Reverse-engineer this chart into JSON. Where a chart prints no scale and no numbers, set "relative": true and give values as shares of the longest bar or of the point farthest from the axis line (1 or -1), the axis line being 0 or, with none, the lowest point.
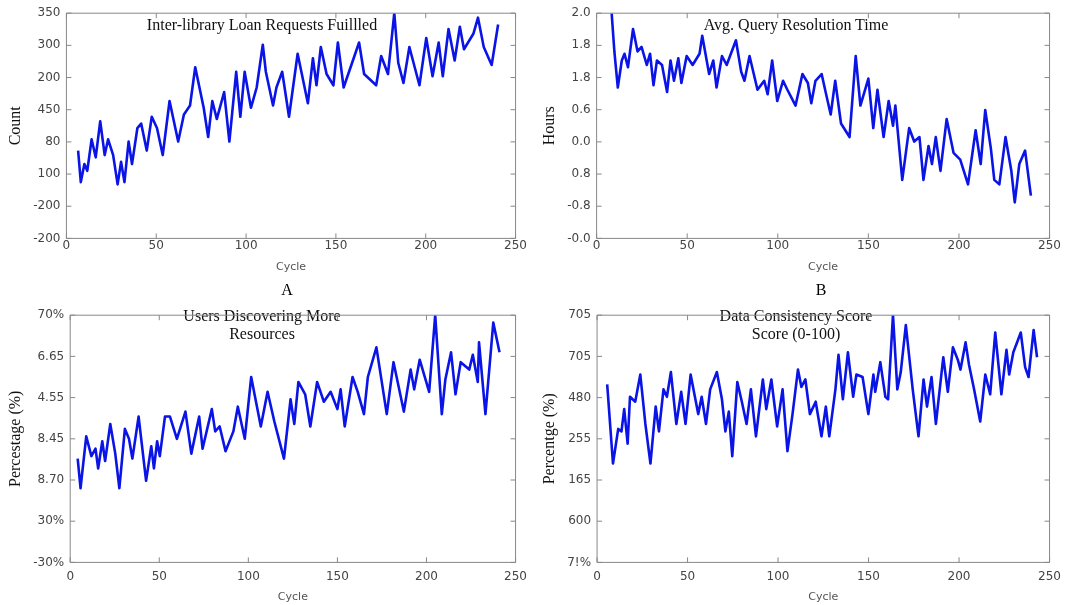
{
  "chart_data": [
    {
      "type": "line",
      "title": "Inter-library Loan Requests Fuillled",
      "xlabel": "Cycle",
      "ylabel": "Count",
      "color": "#0a14e6",
      "grid": false,
      "marker": "none",
      "line_style": "solid",
      "relative": true,
      "annotations": [
        "A"
      ],
      "xlim": [
        0,
        250
      ],
      "xticks": [
        0,
        50,
        100,
        150,
        200,
        250
      ],
      "y_categories": [
        "350",
        "300",
        "200",
        "450",
        "80",
        "100",
        "-200",
        "-200"
      ],
      "x": [
        6.5,
        8,
        10,
        11.6,
        14,
        16.3,
        18.8,
        21.3,
        23.2,
        26,
        28.5,
        30.4,
        32.3,
        34.6,
        36.5,
        39.5,
        41.6,
        44.7,
        47.5,
        50.4,
        53.6,
        57.4,
        62.2,
        65.4,
        68.8,
        71.7,
        76.4,
        78.9,
        81.2,
        83.7,
        87.8,
        90.7,
        94.5,
        96.8,
        99.2,
        102.7,
        105.9,
        109.3,
        111,
        115,
        116.9,
        120.1,
        123.9,
        128.7,
        134.4,
        137.2,
        139.2,
        141.6,
        144.8,
        148.6,
        151.1,
        154.3,
        162.9,
        165.7,
        172.4,
        175.2,
        179,
        182.5,
        184.7,
        187.6,
        190.9,
        196.5,
        200.3,
        203.8,
        207.2,
        209.5,
        212.7,
        216.1,
        219,
        221.3,
        226.6,
        229.1,
        232.3,
        236.7,
        240.3
      ],
      "values": [
        0.39,
        0.25,
        0.33,
        0.3,
        0.44,
        0.36,
        0.52,
        0.37,
        0.44,
        0.37,
        0.24,
        0.34,
        0.25,
        0.43,
        0.33,
        0.49,
        0.51,
        0.39,
        0.54,
        0.49,
        0.37,
        0.61,
        0.43,
        0.55,
        0.59,
        0.76,
        0.58,
        0.45,
        0.61,
        0.53,
        0.65,
        0.43,
        0.74,
        0.54,
        0.74,
        0.58,
        0.67,
        0.86,
        0.74,
        0.59,
        0.67,
        0.74,
        0.54,
        0.82,
        0.6,
        0.8,
        0.68,
        0.85,
        0.73,
        0.68,
        0.87,
        0.67,
        0.87,
        0.73,
        0.68,
        0.81,
        0.73,
        1,
        0.78,
        0.69,
        0.85,
        0.68,
        0.89,
        0.72,
        0.87,
        0.72,
        0.93,
        0.79,
        0.94,
        0.84,
        0.91,
        0.98,
        0.85,
        0.77,
        0.95
      ]
    },
    {
      "type": "line",
      "title": "Avg. Query Resolution Time",
      "xlabel": "Cycle",
      "ylabel": "Hours",
      "color": "#0a14e6",
      "grid": false,
      "marker": "none",
      "line_style": "solid",
      "relative": true,
      "annotations": [
        "B"
      ],
      "xlim": [
        0,
        250
      ],
      "xticks": [
        0,
        50,
        100,
        150,
        200,
        250
      ],
      "y_categories": [
        "2.0",
        "1.8",
        "1.8",
        "0.6",
        "0.0",
        "0.8",
        "-0.8",
        "-0.0"
      ],
      "x": [
        8.3,
        9.8,
        11.7,
        13.9,
        15.4,
        17.3,
        20.1,
        22.6,
        24.8,
        27.7,
        29.5,
        31.4,
        33.3,
        36.1,
        38.9,
        40.8,
        42.7,
        45.1,
        46.8,
        49.7,
        53,
        56.8,
        58.3,
        62.1,
        64.4,
        66.2,
        69.2,
        71.8,
        76.9,
        79.8,
        81.6,
        84.4,
        88.8,
        92.5,
        94.4,
        96.9,
        99.7,
        102.9,
        105.3,
        109.8,
        113.6,
        116.6,
        118.5,
        120.8,
        124.2,
        126.4,
        129.2,
        131.7,
        134.9,
        139.6,
        143,
        145.6,
        150,
        152.7,
        155,
        158.4,
        161.2,
        163.6,
        164.9,
        168.7,
        172.5,
        175.3,
        178.2,
        180.4,
        183.2,
        185.1,
        187.2,
        189.8,
        193.2,
        197,
        200.7,
        205,
        209.2,
        212,
        214.5,
        217.6,
        219.5,
        222.3,
        225.7,
        228.9,
        230.8,
        233.3,
        236.5,
        239.7
      ],
      "values": [
        1,
        0.83,
        0.67,
        0.79,
        0.82,
        0.76,
        0.93,
        0.83,
        0.85,
        0.77,
        0.82,
        0.68,
        0.79,
        0.77,
        0.65,
        0.79,
        0.7,
        0.8,
        0.69,
        0.81,
        0.77,
        0.82,
        0.9,
        0.73,
        0.79,
        0.67,
        0.81,
        0.77,
        0.88,
        0.74,
        0.7,
        0.81,
        0.66,
        0.7,
        0.64,
        0.79,
        0.61,
        0.7,
        0.66,
        0.59,
        0.73,
        0.69,
        0.6,
        0.7,
        0.73,
        0.65,
        0.55,
        0.7,
        0.51,
        0.45,
        0.81,
        0.59,
        0.71,
        0.49,
        0.66,
        0.45,
        0.61,
        0.5,
        0.59,
        0.26,
        0.49,
        0.43,
        0.45,
        0.26,
        0.41,
        0.33,
        0.45,
        0.3,
        0.53,
        0.38,
        0.35,
        0.24,
        0.48,
        0.33,
        0.57,
        0.4,
        0.26,
        0.24,
        0.45,
        0.3,
        0.16,
        0.33,
        0.39,
        0.19
      ]
    },
    {
      "type": "line",
      "title": "Users Discovering More\nResources",
      "xlabel": "Cycle",
      "ylabel": "Percestage (%)",
      "color": "#0a14e6",
      "grid": false,
      "marker": "none",
      "line_style": "solid",
      "relative": true,
      "xlim": [
        0,
        250
      ],
      "xticks": [
        0,
        50,
        100,
        150,
        200,
        250
      ],
      "y_categories": [
        "70%",
        "6.65",
        "4.55",
        "8.45",
        "8.70",
        "30%",
        "-30%"
      ],
      "x": [
        4.2,
        5.8,
        9,
        11.9,
        14.2,
        15.7,
        18,
        19.6,
        22.5,
        25.3,
        27.6,
        30.7,
        33,
        34.9,
        38.4,
        42.6,
        45.5,
        47,
        48.8,
        50.3,
        53.2,
        56,
        59.9,
        64.7,
        68,
        72.4,
        74.3,
        79.5,
        81.4,
        83.9,
        87.2,
        91.6,
        94.1,
        98,
        101.6,
        107,
        110.8,
        114.6,
        120,
        123.7,
        125.8,
        128.1,
        131.9,
        134.8,
        138.6,
        142.4,
        146.2,
        150,
        151.8,
        154.1,
        158.5,
        161.4,
        164.9,
        167.1,
        171.9,
        177.7,
        181.5,
        187.3,
        191.1,
        193.1,
        196.2,
        201.5,
        204.9,
        208.6,
        210.6,
        213.8,
        216.3,
        219.2,
        224,
        226,
        228.8,
        229.5,
        233.1,
        237.5,
        241
      ],
      "values": [
        0.42,
        0.3,
        0.51,
        0.43,
        0.46,
        0.38,
        0.49,
        0.41,
        0.56,
        0.44,
        0.3,
        0.54,
        0.5,
        0.42,
        0.59,
        0.33,
        0.47,
        0.38,
        0.49,
        0.43,
        0.59,
        0.59,
        0.5,
        0.61,
        0.44,
        0.59,
        0.46,
        0.62,
        0.53,
        0.55,
        0.45,
        0.53,
        0.63,
        0.5,
        0.75,
        0.55,
        0.69,
        0.57,
        0.42,
        0.66,
        0.56,
        0.73,
        0.68,
        0.55,
        0.73,
        0.65,
        0.69,
        0.62,
        0.7,
        0.55,
        0.75,
        0.69,
        0.6,
        0.75,
        0.87,
        0.6,
        0.81,
        0.61,
        0.78,
        0.7,
        0.82,
        0.69,
        1,
        0.6,
        0.74,
        0.85,
        0.68,
        0.81,
        0.78,
        0.84,
        0.73,
        0.89,
        0.6,
        0.97,
        0.85
      ]
    },
    {
      "type": "line",
      "title": "Data Consistency Score\nScore (0-100)",
      "xlabel": "Cycle",
      "ylabel": "Percentge (%)",
      "color": "#0a14e6",
      "grid": false,
      "marker": "none",
      "line_style": "solid",
      "relative": true,
      "xlim": [
        0,
        250
      ],
      "xticks": [
        0,
        50,
        100,
        150,
        200,
        250
      ],
      "y_categories": [
        "705",
        "705",
        "480",
        "255",
        "165",
        "600",
        "7!%"
      ],
      "x": [
        5.6,
        8.8,
        11.7,
        13.5,
        15,
        16.9,
        18.2,
        21.1,
        23.9,
        26.7,
        29.5,
        32.4,
        34.2,
        36.7,
        38.6,
        40.8,
        43.8,
        46.5,
        48.9,
        51.7,
        55.9,
        57.8,
        60.2,
        62.5,
        66.2,
        69,
        70.9,
        72.8,
        74.7,
        77.5,
        80,
        82.6,
        85,
        87.8,
        91.6,
        93.5,
        96.3,
        99.5,
        102.5,
        105.2,
        108,
        111,
        112.9,
        115.1,
        117.6,
        120.8,
        124,
        126.4,
        128.3,
        131.7,
        133.4,
        135.8,
        138.6,
        141.5,
        143.3,
        146.7,
        149.9,
        152.7,
        153.7,
        156.5,
        159.3,
        160.8,
        163.5,
        165.9,
        167.8,
        170.6,
        174.4,
        177.6,
        180.4,
        182.3,
        184.8,
        187.2,
        191.3,
        193.8,
        196.6,
        199.3,
        200.8,
        203.6,
        205.5,
        208.3,
        211.7,
        214.5,
        217.2,
        220,
        223.4,
        226.2,
        227.7,
        230,
        234.1,
        236.5,
        238.4,
        241.2,
        243.1
      ],
      "values": [
        0.72,
        0.4,
        0.54,
        0.53,
        0.62,
        0.48,
        0.67,
        0.65,
        0.76,
        0.56,
        0.4,
        0.63,
        0.53,
        0.7,
        0.67,
        0.77,
        0.56,
        0.69,
        0.56,
        0.76,
        0.6,
        0.67,
        0.56,
        0.7,
        0.77,
        0.66,
        0.53,
        0.61,
        0.43,
        0.73,
        0.65,
        0.56,
        0.7,
        0.51,
        0.74,
        0.62,
        0.74,
        0.55,
        0.7,
        0.45,
        0.6,
        0.78,
        0.71,
        0.74,
        0.6,
        0.65,
        0.51,
        0.63,
        0.51,
        0.7,
        0.84,
        0.66,
        0.85,
        0.67,
        0.76,
        0.75,
        0.6,
        0.76,
        0.69,
        0.81,
        0.67,
        0.66,
        1,
        0.7,
        0.77,
        0.96,
        0.7,
        0.51,
        0.74,
        0.63,
        0.75,
        0.56,
        0.83,
        0.69,
        0.87,
        0.82,
        0.78,
        0.89,
        0.8,
        0.7,
        0.57,
        0.76,
        0.68,
        0.93,
        0.68,
        0.86,
        0.76,
        0.85,
        0.93,
        0.79,
        0.75,
        0.94,
        0.83
      ]
    }
  ]
}
